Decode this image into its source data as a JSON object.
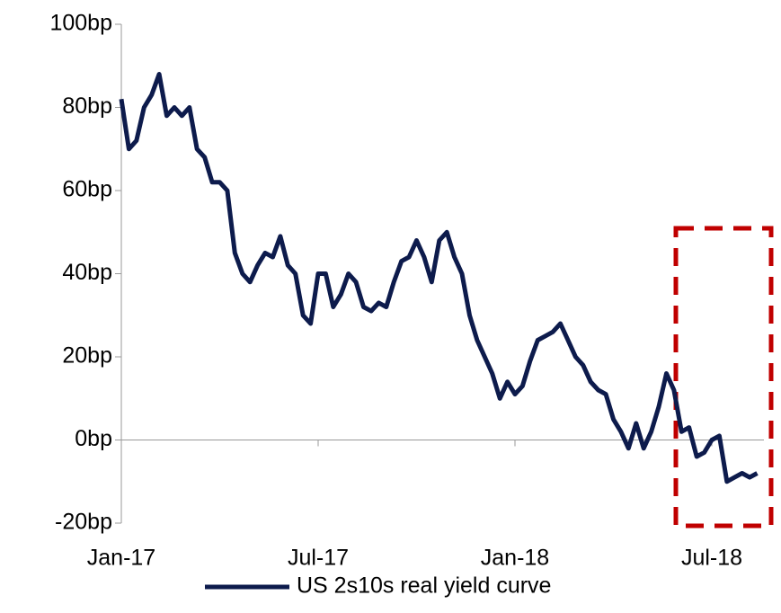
{
  "chart_data": {
    "type": "line",
    "categories": [
      "Jan-17",
      null,
      null,
      null,
      null,
      null,
      null,
      null,
      null,
      null,
      null,
      null,
      null,
      null,
      null,
      null,
      null,
      null,
      null,
      null,
      null,
      null,
      null,
      null,
      null,
      null,
      "Jul-17",
      null,
      null,
      null,
      null,
      null,
      null,
      null,
      null,
      null,
      null,
      null,
      null,
      null,
      null,
      null,
      null,
      null,
      null,
      null,
      null,
      null,
      null,
      null,
      null,
      null,
      "Jan-18",
      null,
      null,
      null,
      null,
      null,
      null,
      null,
      null,
      null,
      null,
      null,
      null,
      null,
      null,
      null,
      null,
      null,
      null,
      null,
      null,
      null,
      null,
      null,
      null,
      null,
      "Jul-18",
      null,
      null,
      null,
      null,
      null,
      null
    ],
    "series": [
      {
        "name": "US 2s10s real yield curve",
        "color": "#0d1b4c",
        "values": [
          82,
          70,
          72,
          80,
          83,
          88,
          78,
          80,
          78,
          80,
          70,
          68,
          62,
          62,
          60,
          45,
          40,
          38,
          42,
          45,
          44,
          49,
          42,
          40,
          30,
          28,
          40,
          40,
          32,
          35,
          40,
          38,
          32,
          31,
          33,
          32,
          38,
          43,
          44,
          48,
          44,
          38,
          48,
          50,
          44,
          40,
          30,
          24,
          20,
          16,
          10,
          14,
          11,
          13,
          19,
          24,
          25,
          26,
          28,
          24,
          20,
          18,
          14,
          12,
          11,
          5,
          2,
          -2,
          4,
          -2,
          2,
          8,
          16,
          12,
          2,
          3,
          -4,
          -3,
          0,
          1,
          -10,
          -9,
          -8,
          -9,
          -8
        ]
      }
    ],
    "ylim": [
      -20,
      100
    ],
    "yticks": [
      {
        "value": -20,
        "label": "-20bp"
      },
      {
        "value": 0,
        "label": "0bp"
      },
      {
        "value": 20,
        "label": "20bp"
      },
      {
        "value": 40,
        "label": "40bp"
      },
      {
        "value": 60,
        "label": "60bp"
      },
      {
        "value": 80,
        "label": "80bp"
      },
      {
        "value": 100,
        "label": "100bp"
      }
    ],
    "grid": false
  }
}
